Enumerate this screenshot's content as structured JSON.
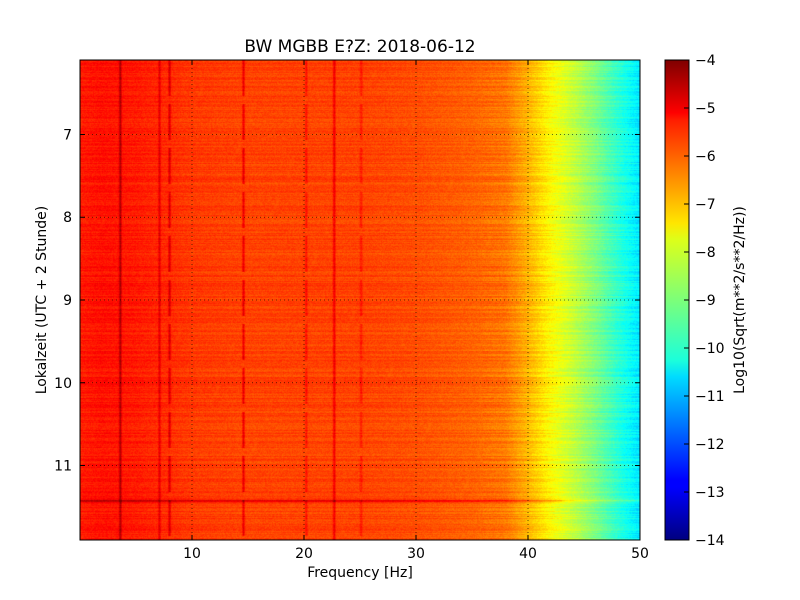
{
  "chart_data": {
    "type": "heatmap",
    "title": "BW MGBB E?Z: 2018-06-12",
    "xlabel": "Frequency [Hz]",
    "ylabel": "Lokalzeit (UTC + 2 Stunde)",
    "colorbar_label": "Log10(Sqrt(m**2/s**2/Hz))",
    "xlim": [
      0,
      50
    ],
    "ylim": [
      6.1,
      11.9
    ],
    "y_inverted": true,
    "clim": [
      -14,
      -4
    ],
    "colormap": "jet",
    "grid": true,
    "x_ticks": [
      10,
      20,
      30,
      40,
      50
    ],
    "y_ticks": [
      7,
      8,
      9,
      10,
      11
    ],
    "colorbar_ticks": [
      -4,
      -5,
      -6,
      -7,
      -8,
      -9,
      -10,
      -11,
      -12,
      -13,
      -14
    ],
    "frequency_profile": {
      "x": [
        0,
        2,
        5,
        10,
        15,
        20,
        25,
        30,
        35,
        38,
        40,
        42,
        44,
        46,
        48,
        50
      ],
      "value": [
        -5.5,
        -5.4,
        -5.5,
        -5.8,
        -5.9,
        -5.9,
        -5.9,
        -6.0,
        -6.2,
        -6.4,
        -7.0,
        -7.7,
        -8.3,
        -9.0,
        -9.8,
        -10.5
      ]
    },
    "vertical_features": [
      {
        "freq": 3.6,
        "delta": 1.1
      },
      {
        "freq": 7.1,
        "delta": 0.7
      },
      {
        "freq": 8.0,
        "delta": 0.9,
        "dashed": true
      },
      {
        "freq": 14.6,
        "delta": 0.9,
        "dashed": true
      },
      {
        "freq": 20.2,
        "delta": 0.6,
        "dashed": true
      },
      {
        "freq": 22.7,
        "delta": 0.9
      },
      {
        "freq": 25.1,
        "delta": 0.5,
        "dashed": true
      }
    ],
    "horizontal_features": [
      {
        "time": 11.43,
        "delta": 1.2
      },
      {
        "time": 9.27,
        "delta": 0.3
      }
    ]
  }
}
